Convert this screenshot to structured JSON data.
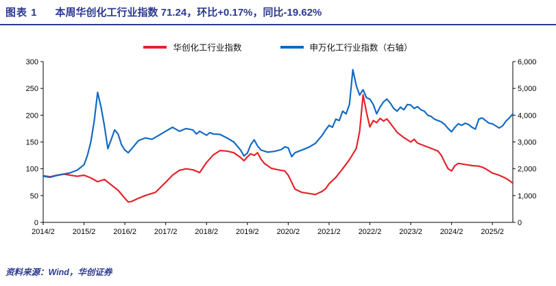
{
  "header": {
    "label": "图表 1",
    "title": "本周华创化工行业指数 71.24，环比+0.17%，同比-19.62%",
    "accent_color": "#2b3990"
  },
  "footer": {
    "source": "资料来源：Wind，华创证券"
  },
  "chart_data": {
    "type": "line",
    "title": "本周华创化工行业指数 71.24，环比+0.17%，同比-19.62%",
    "legend_position": "top",
    "grid": false,
    "x_unit": "months since 2014/2",
    "x_range": [
      0,
      138
    ],
    "x_ticks": [
      {
        "t": 0,
        "label": "2014/2"
      },
      {
        "t": 12,
        "label": "2015/2"
      },
      {
        "t": 24,
        "label": "2016/2"
      },
      {
        "t": 36,
        "label": "2017/2"
      },
      {
        "t": 48,
        "label": "2018/2"
      },
      {
        "t": 60,
        "label": "2019/2"
      },
      {
        "t": 72,
        "label": "2020/2"
      },
      {
        "t": 84,
        "label": "2021/2"
      },
      {
        "t": 96,
        "label": "2022/2"
      },
      {
        "t": 108,
        "label": "2023/2"
      },
      {
        "t": 120,
        "label": "2024/2"
      },
      {
        "t": 132,
        "label": "2025/2"
      }
    ],
    "left_axis": {
      "range": [
        0,
        300
      ],
      "ticks": [
        {
          "v": 0,
          "label": "0"
        },
        {
          "v": 50,
          "label": "50"
        },
        {
          "v": 100,
          "label": "100"
        },
        {
          "v": 150,
          "label": "150"
        },
        {
          "v": 200,
          "label": "200"
        },
        {
          "v": 250,
          "label": "250"
        },
        {
          "v": 300,
          "label": "300"
        }
      ]
    },
    "right_axis": {
      "range": [
        0,
        6000
      ],
      "ticks": [
        {
          "v": 0,
          "label": "0"
        },
        {
          "v": 1000,
          "label": "1,000"
        },
        {
          "v": 2000,
          "label": "2,000"
        },
        {
          "v": 3000,
          "label": "3,000"
        },
        {
          "v": 4000,
          "label": "4,000"
        },
        {
          "v": 5000,
          "label": "5,000"
        },
        {
          "v": 6000,
          "label": "6,000"
        }
      ]
    },
    "series": [
      {
        "name": "华创化工行业指数",
        "axis": "left",
        "color": "#e62129",
        "latest_value": 71.24,
        "points": [
          [
            0,
            87
          ],
          [
            2,
            85
          ],
          [
            4,
            88
          ],
          [
            6,
            90
          ],
          [
            8,
            88
          ],
          [
            10,
            86
          ],
          [
            12,
            88
          ],
          [
            14,
            83
          ],
          [
            16,
            76
          ],
          [
            18,
            80
          ],
          [
            20,
            70
          ],
          [
            22,
            60
          ],
          [
            24,
            45
          ],
          [
            25,
            38
          ],
          [
            26,
            39
          ],
          [
            28,
            45
          ],
          [
            30,
            50
          ],
          [
            33,
            56
          ],
          [
            36,
            75
          ],
          [
            38,
            88
          ],
          [
            40,
            97
          ],
          [
            42,
            100
          ],
          [
            44,
            98
          ],
          [
            46,
            93
          ],
          [
            48,
            112
          ],
          [
            50,
            126
          ],
          [
            52,
            134
          ],
          [
            54,
            133
          ],
          [
            56,
            130
          ],
          [
            58,
            121
          ],
          [
            59,
            115
          ],
          [
            60,
            122
          ],
          [
            61,
            128
          ],
          [
            62,
            125
          ],
          [
            63,
            130
          ],
          [
            64,
            118
          ],
          [
            65,
            110
          ],
          [
            67,
            101
          ],
          [
            69,
            98
          ],
          [
            71,
            96
          ],
          [
            72,
            88
          ],
          [
            73,
            75
          ],
          [
            74,
            62
          ],
          [
            76,
            56
          ],
          [
            78,
            54
          ],
          [
            80,
            52
          ],
          [
            82,
            58
          ],
          [
            83,
            63
          ],
          [
            84,
            72
          ],
          [
            86,
            84
          ],
          [
            88,
            100
          ],
          [
            90,
            117
          ],
          [
            92,
            138
          ],
          [
            93,
            170
          ],
          [
            94,
            238
          ],
          [
            95,
            205
          ],
          [
            96,
            178
          ],
          [
            97,
            190
          ],
          [
            98,
            186
          ],
          [
            99,
            194
          ],
          [
            100,
            189
          ],
          [
            101,
            193
          ],
          [
            102,
            185
          ],
          [
            104,
            168
          ],
          [
            106,
            158
          ],
          [
            108,
            150
          ],
          [
            109,
            155
          ],
          [
            110,
            148
          ],
          [
            112,
            143
          ],
          [
            114,
            138
          ],
          [
            116,
            133
          ],
          [
            117,
            125
          ],
          [
            118,
            112
          ],
          [
            119,
            100
          ],
          [
            120,
            96
          ],
          [
            121,
            106
          ],
          [
            122,
            110
          ],
          [
            124,
            108
          ],
          [
            126,
            106
          ],
          [
            128,
            105
          ],
          [
            129,
            103
          ],
          [
            130,
            100
          ],
          [
            131,
            96
          ],
          [
            132,
            92
          ],
          [
            133,
            90
          ],
          [
            134,
            88
          ],
          [
            135,
            85
          ],
          [
            136,
            82
          ],
          [
            137,
            78
          ],
          [
            138,
            73
          ]
        ]
      },
      {
        "name": "申万化工行业指数（右轴）",
        "axis": "right",
        "color": "#1269c2",
        "points": [
          [
            0,
            1720
          ],
          [
            2,
            1680
          ],
          [
            4,
            1750
          ],
          [
            6,
            1800
          ],
          [
            8,
            1850
          ],
          [
            10,
            1950
          ],
          [
            12,
            2150
          ],
          [
            13,
            2500
          ],
          [
            14,
            3000
          ],
          [
            15,
            3800
          ],
          [
            16,
            4850
          ],
          [
            17,
            4300
          ],
          [
            18,
            3600
          ],
          [
            19,
            2750
          ],
          [
            20,
            3100
          ],
          [
            21,
            3450
          ],
          [
            22,
            3300
          ],
          [
            23,
            2900
          ],
          [
            24,
            2700
          ],
          [
            25,
            2600
          ],
          [
            26,
            2750
          ],
          [
            28,
            3050
          ],
          [
            30,
            3150
          ],
          [
            32,
            3100
          ],
          [
            34,
            3250
          ],
          [
            36,
            3400
          ],
          [
            38,
            3550
          ],
          [
            40,
            3400
          ],
          [
            42,
            3500
          ],
          [
            44,
            3450
          ],
          [
            45,
            3300
          ],
          [
            46,
            3400
          ],
          [
            48,
            3250
          ],
          [
            49,
            3350
          ],
          [
            50,
            3300
          ],
          [
            52,
            3280
          ],
          [
            54,
            3150
          ],
          [
            56,
            3000
          ],
          [
            58,
            2700
          ],
          [
            59,
            2480
          ],
          [
            60,
            2580
          ],
          [
            61,
            2900
          ],
          [
            62,
            3080
          ],
          [
            63,
            2850
          ],
          [
            64,
            2700
          ],
          [
            66,
            2620
          ],
          [
            68,
            2650
          ],
          [
            70,
            2720
          ],
          [
            71,
            2820
          ],
          [
            72,
            2780
          ],
          [
            73,
            2450
          ],
          [
            74,
            2600
          ],
          [
            76,
            2700
          ],
          [
            78,
            2800
          ],
          [
            80,
            2950
          ],
          [
            82,
            3250
          ],
          [
            83,
            3450
          ],
          [
            84,
            3620
          ],
          [
            85,
            3550
          ],
          [
            86,
            3850
          ],
          [
            87,
            3800
          ],
          [
            88,
            4150
          ],
          [
            89,
            4050
          ],
          [
            90,
            4400
          ],
          [
            91,
            5700
          ],
          [
            92,
            5100
          ],
          [
            93,
            4750
          ],
          [
            94,
            4950
          ],
          [
            95,
            4650
          ],
          [
            96,
            4600
          ],
          [
            97,
            4400
          ],
          [
            98,
            4050
          ],
          [
            99,
            4300
          ],
          [
            100,
            4500
          ],
          [
            101,
            4600
          ],
          [
            102,
            4450
          ],
          [
            103,
            4250
          ],
          [
            104,
            4150
          ],
          [
            105,
            4300
          ],
          [
            106,
            4200
          ],
          [
            107,
            4400
          ],
          [
            108,
            4380
          ],
          [
            109,
            4250
          ],
          [
            110,
            4320
          ],
          [
            111,
            4200
          ],
          [
            112,
            4150
          ],
          [
            113,
            4000
          ],
          [
            114,
            3950
          ],
          [
            115,
            3850
          ],
          [
            116,
            3800
          ],
          [
            117,
            3750
          ],
          [
            118,
            3650
          ],
          [
            119,
            3500
          ],
          [
            120,
            3380
          ],
          [
            121,
            3550
          ],
          [
            122,
            3680
          ],
          [
            123,
            3620
          ],
          [
            124,
            3700
          ],
          [
            125,
            3650
          ],
          [
            126,
            3550
          ],
          [
            127,
            3480
          ],
          [
            128,
            3850
          ],
          [
            129,
            3900
          ],
          [
            130,
            3800
          ],
          [
            131,
            3700
          ],
          [
            132,
            3680
          ],
          [
            133,
            3600
          ],
          [
            134,
            3520
          ],
          [
            135,
            3600
          ],
          [
            136,
            3780
          ],
          [
            137,
            3900
          ],
          [
            138,
            4050
          ]
        ]
      }
    ]
  }
}
